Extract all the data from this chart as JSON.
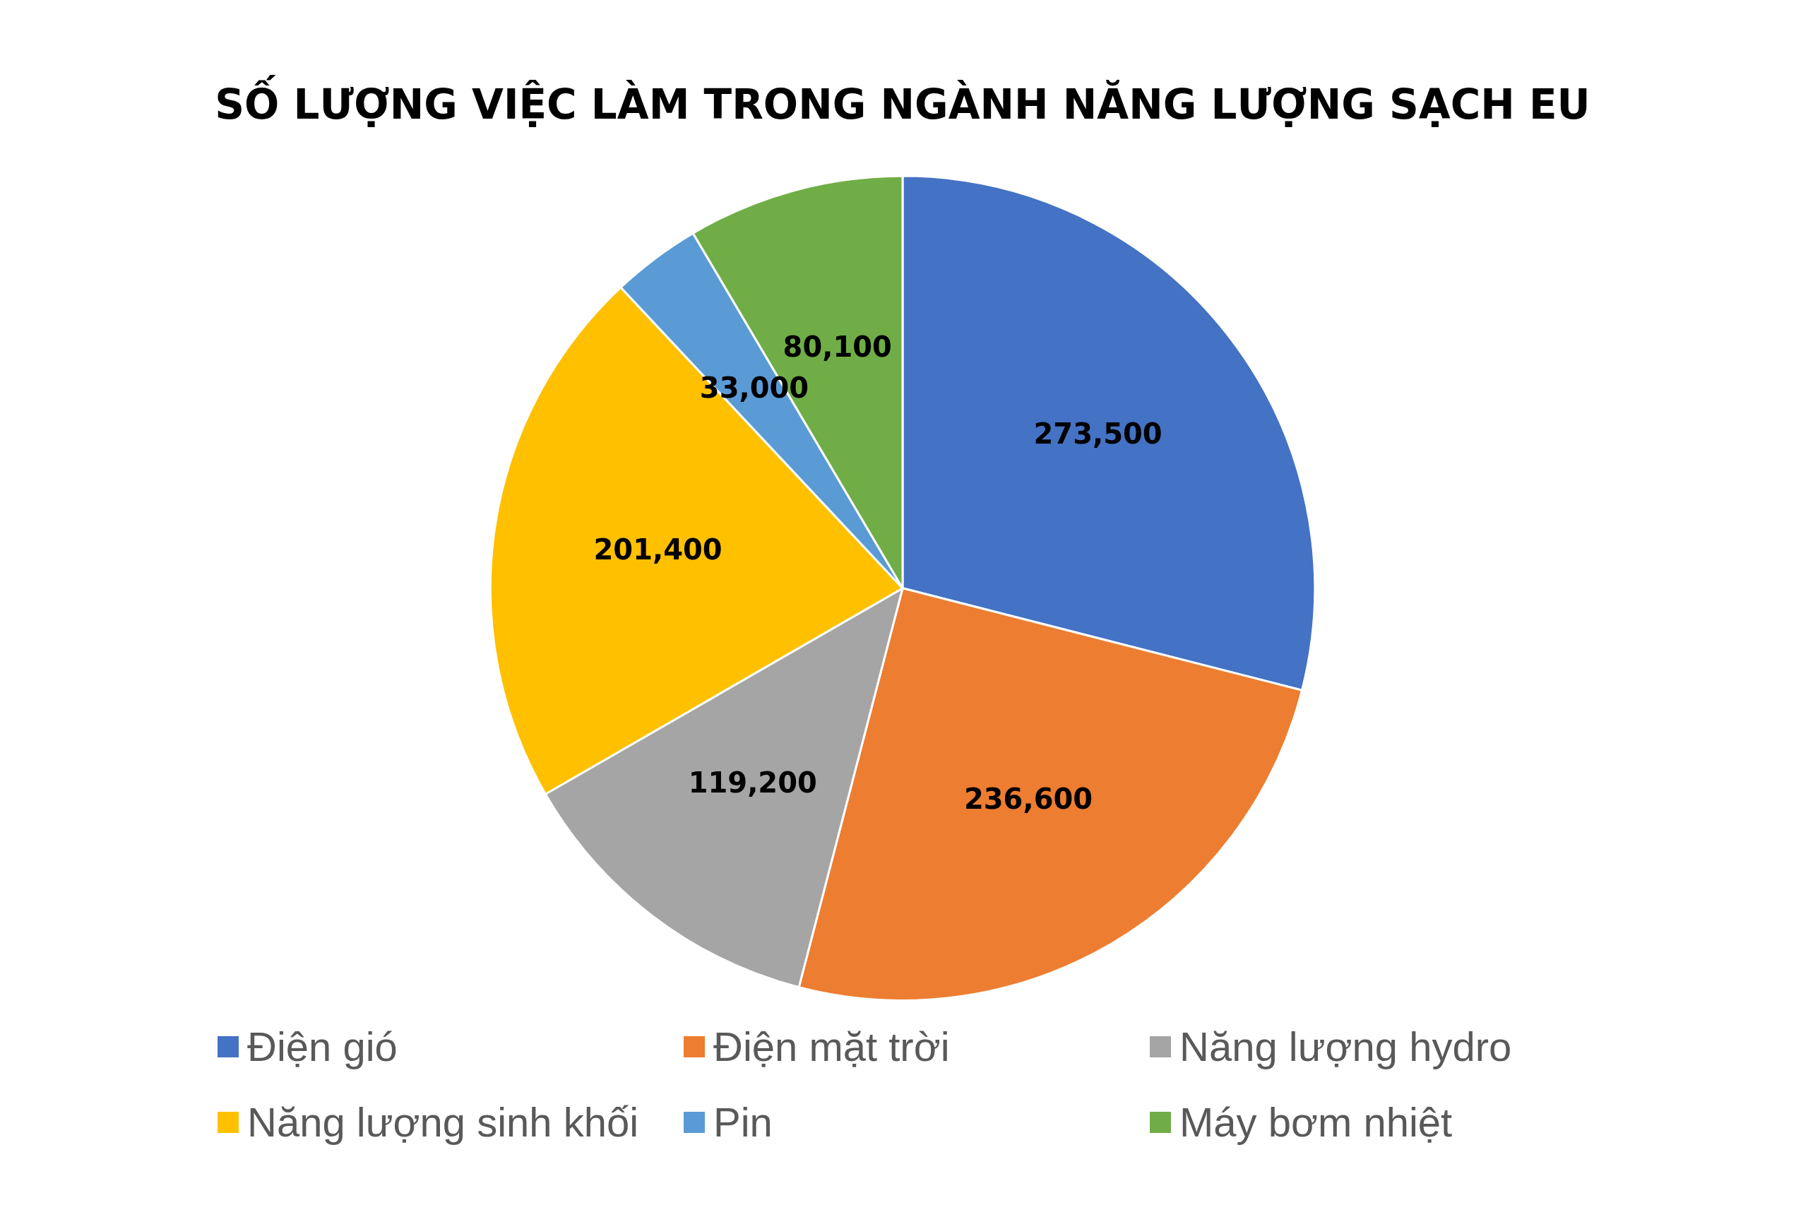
{
  "chart_data": {
    "type": "pie",
    "title": "SỐ LƯỢNG VIỆC LÀM TRONG NGÀNH NĂNG LƯỢNG SẠCH EU",
    "categories": [
      "Điện gió",
      "Điện mặt trời",
      "Năng lượng hydro",
      "Năng lượng sinh khối",
      "Pin",
      "Máy bơm nhiệt"
    ],
    "values": [
      273500,
      236600,
      119200,
      201400,
      33000,
      80100
    ],
    "value_labels": [
      "273,500",
      "236,600",
      "119,200",
      "201,400",
      "33,000",
      "80,100"
    ],
    "colors": [
      "#4472c4",
      "#ed7d31",
      "#a5a5a5",
      "#ffc000",
      "#5b9bd5",
      "#70ad47"
    ],
    "legend": "bottom"
  }
}
